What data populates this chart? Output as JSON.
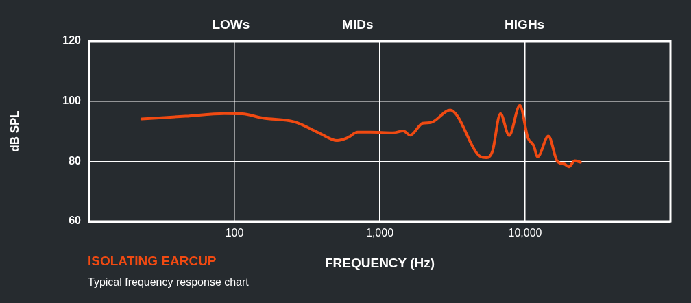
{
  "chart_data": {
    "type": "line",
    "title": "ISOLATING EARCUP",
    "subtitle": "Typical frequency response chart",
    "xlabel": "FREQUENCY (Hz)",
    "ylabel": "dB SPL",
    "log": "x",
    "xlim": [
      10,
      100000
    ],
    "xticks": [
      {
        "value": 100,
        "label": "100"
      },
      {
        "value": 1000,
        "label": "1,000"
      },
      {
        "value": 10000,
        "label": "10,000"
      }
    ],
    "annotations": [
      "LOWs",
      "MIDs",
      "HIGHs"
    ],
    "ylim": [
      60,
      120
    ],
    "yticks": [
      60,
      80,
      100,
      120
    ],
    "grid": true,
    "legend": false,
    "line_style": "solid",
    "series": [
      {
        "color": "#f04a12",
        "x": [
          23,
          46,
          85,
          113,
          157,
          260,
          387,
          508,
          598,
          704,
          859,
          1233,
          1452,
          1619,
          1977,
          2244,
          3050,
          4887,
          5445,
          5958,
          6761,
          7762,
          9200,
          10450,
          11430,
          12200,
          14460,
          16700,
          18620,
          20030,
          21930,
          24030
        ],
        "values": [
          94.1,
          95.0,
          95.9,
          95.8,
          94.4,
          93.1,
          89.3,
          86.9,
          87.8,
          89.7,
          89.7,
          89.5,
          90.1,
          88.7,
          92.7,
          92.9,
          97.1,
          81.7,
          81.2,
          83.3,
          95.9,
          88.6,
          98.6,
          87.8,
          85.3,
          81.5,
          88.4,
          79.9,
          79.1,
          78.2,
          80.2,
          79.7
        ]
      }
    ]
  }
}
